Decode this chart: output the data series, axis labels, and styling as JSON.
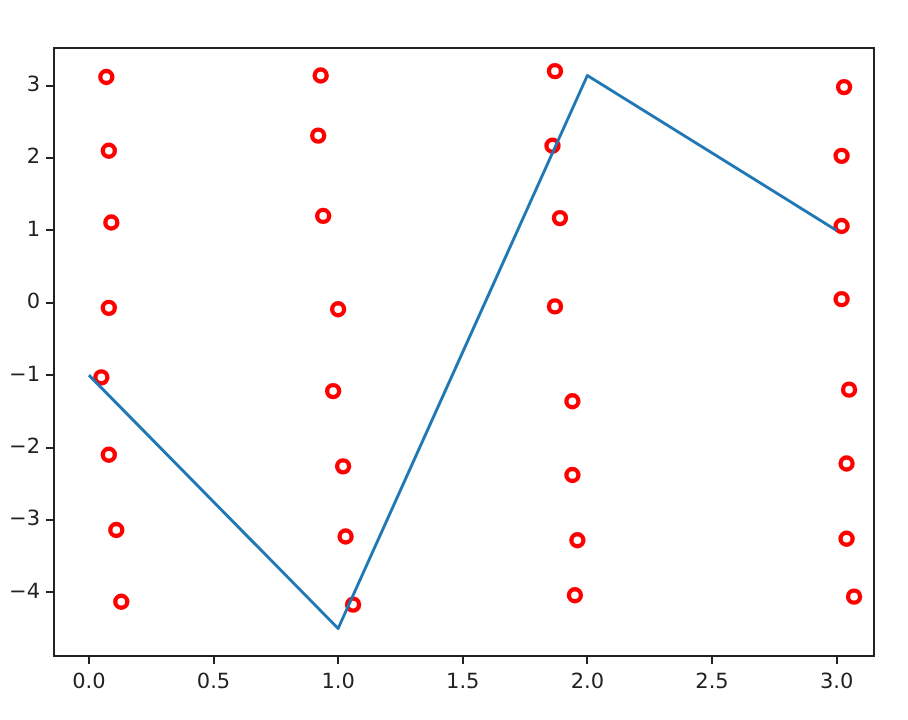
{
  "chart_data": {
    "type": "scatter",
    "xlim": [
      -0.14,
      3.15
    ],
    "ylim": [
      -4.88,
      3.52
    ],
    "xticks": [
      {
        "value": 0,
        "label": "0.0"
      },
      {
        "value": 0.5,
        "label": "0.5"
      },
      {
        "value": 1,
        "label": "1.0"
      },
      {
        "value": 1.5,
        "label": "1.5"
      },
      {
        "value": 2,
        "label": "2.0"
      },
      {
        "value": 2.5,
        "label": "2.5"
      },
      {
        "value": 3,
        "label": "3.0"
      }
    ],
    "yticks": [
      {
        "value": -4,
        "label": "−4"
      },
      {
        "value": -3,
        "label": "−3"
      },
      {
        "value": -2,
        "label": "−2"
      },
      {
        "value": -1,
        "label": "−1"
      },
      0,
      1,
      2,
      3
    ],
    "grid": false,
    "legend": false,
    "series": [
      {
        "type": "line",
        "color": "#1f77b4",
        "marker": "none",
        "line_style": "solid",
        "x": [
          0,
          1,
          2,
          3
        ],
        "values": [
          -1,
          -4.5,
          3.14,
          1
        ]
      },
      {
        "color": "#ff0000",
        "marker": "circle",
        "x": [
          0.07,
          0.08,
          0.09,
          0.08,
          0.05,
          0.08,
          0.11,
          0.13,
          0.93,
          0.92,
          0.94,
          1.0,
          0.98,
          1.02,
          1.03,
          1.06,
          1.87,
          1.86,
          1.89,
          1.87,
          1.94,
          1.94,
          1.96,
          1.95,
          3.03,
          3.02,
          3.02,
          3.02,
          3.05,
          3.04,
          3.04,
          3.07
        ],
        "values": [
          3.12,
          2.1,
          1.11,
          -0.07,
          -1.03,
          -2.1,
          -3.14,
          -4.13,
          3.14,
          2.31,
          1.2,
          -0.09,
          -1.22,
          -2.26,
          -3.23,
          -4.17,
          3.2,
          2.17,
          1.17,
          -0.05,
          -1.36,
          -2.38,
          -3.28,
          -4.04,
          2.98,
          2.03,
          1.06,
          0.05,
          -1.2,
          -2.22,
          -3.26,
          -4.06
        ]
      }
    ]
  }
}
